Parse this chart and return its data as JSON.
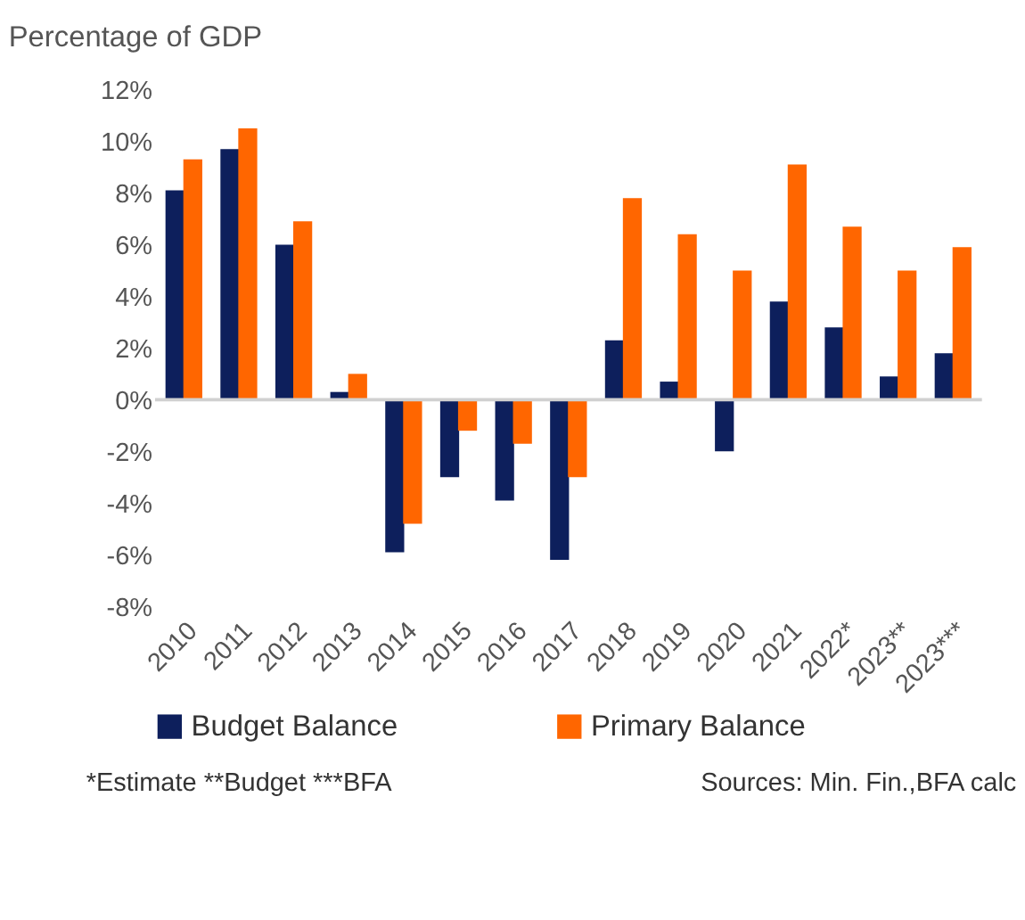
{
  "chart_data": {
    "type": "bar",
    "title": "Percentage of GDP",
    "categories": [
      "2010",
      "2011",
      "2012",
      "2013",
      "2014",
      "2015",
      "2016",
      "2017",
      "2018",
      "2019",
      "2020",
      "2021",
      "2022*",
      "2023**",
      "2023***"
    ],
    "series": [
      {
        "name": "Budget Balance",
        "color": "#0d1f5c",
        "values": [
          8.1,
          9.7,
          6.0,
          0.3,
          -5.9,
          -3.0,
          -3.9,
          -6.2,
          2.3,
          0.7,
          -2.0,
          3.8,
          2.8,
          0.9,
          1.8
        ]
      },
      {
        "name": "Primary Balance",
        "color": "#ff6600",
        "values": [
          9.3,
          10.5,
          6.9,
          1.0,
          -4.8,
          -1.2,
          -1.7,
          -3.0,
          7.8,
          6.4,
          5.0,
          9.1,
          6.7,
          5.0,
          5.9
        ]
      }
    ],
    "ylim": [
      -8,
      12
    ],
    "yticks": [
      {
        "value": -8,
        "label": "-8%"
      },
      {
        "value": -6,
        "label": "-6%"
      },
      {
        "value": -4,
        "label": "-4%"
      },
      {
        "value": -2,
        "label": "-2%"
      },
      {
        "value": 0,
        "label": "0%"
      },
      {
        "value": 2,
        "label": "2%"
      },
      {
        "value": 4,
        "label": "4%"
      },
      {
        "value": 6,
        "label": "6%"
      },
      {
        "value": 8,
        "label": "8%"
      },
      {
        "value": 10,
        "label": "10%"
      },
      {
        "value": 12,
        "label": "12%"
      }
    ],
    "grid": false,
    "ref_lines": [
      {
        "axis": "y",
        "value": 0,
        "color": "#d0d0d0"
      }
    ],
    "legend": "bottom",
    "annotations": [
      "*Estimate **Budget ***BFA",
      "Sources: Min. Fin.,BFA calc"
    ]
  }
}
